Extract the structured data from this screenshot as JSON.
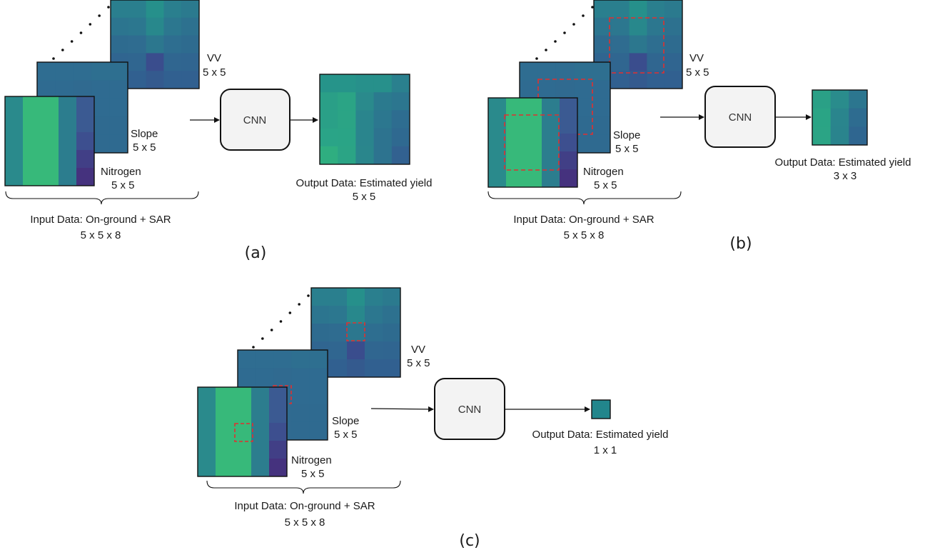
{
  "panels": [
    {
      "caption": "(a)",
      "layers": [
        {
          "name": "VV",
          "size": "5 x 5"
        },
        {
          "name": "Slope",
          "size": "5 x 5"
        },
        {
          "name": "Nitrogen",
          "size": "5 x 5"
        }
      ],
      "input_label": "Input Data: On-ground + SAR",
      "input_size": "5 x 5 x 8",
      "model_label": "CNN",
      "output_label": "Output Data: Estimated yield",
      "output_size": "5 x 5",
      "window": "none"
    },
    {
      "caption": "(b)",
      "layers": [
        {
          "name": "VV",
          "size": "5 x 5"
        },
        {
          "name": "Slope",
          "size": "5 x 5"
        },
        {
          "name": "Nitrogen",
          "size": "5 x 5"
        }
      ],
      "input_label": "Input Data: On-ground + SAR",
      "input_size": "5 x 5 x 8",
      "model_label": "CNN",
      "output_label": "Output Data: Estimated yield",
      "output_size": "3 x 3",
      "window": "3 x 3"
    },
    {
      "caption": "(c)",
      "layers": [
        {
          "name": "VV",
          "size": "5 x 5"
        },
        {
          "name": "Slope",
          "size": "5 x 5"
        },
        {
          "name": "Nitrogen",
          "size": "5 x 5"
        }
      ],
      "input_label": "Input Data: On-ground + SAR",
      "input_size": "5 x 5 x 8",
      "model_label": "CNN",
      "output_label": "Output Data: Estimated yield",
      "output_size": "1 x 1",
      "window": "1 x 1"
    }
  ],
  "colors": {
    "window_dash": "#e03030",
    "cnn_fill": "#f3f3f3",
    "nitrogen": [
      [
        "#2a8a8c",
        "#37b97a",
        "#37b97a",
        "#2c7d8e",
        "#3b5a92"
      ],
      [
        "#2a8a8c",
        "#37b97a",
        "#37b97a",
        "#2c7d8e",
        "#3b5a92"
      ],
      [
        "#2a8a8c",
        "#37b97a",
        "#37b97a",
        "#2c7d8e",
        "#3d4f8f"
      ],
      [
        "#2a8a8c",
        "#37b97a",
        "#37b97a",
        "#2c7d8e",
        "#413f86"
      ],
      [
        "#2a8a8c",
        "#37b97a",
        "#37b97a",
        "#2c7d8e",
        "#45327e"
      ]
    ],
    "slope": [
      [
        "#2f6d91",
        "#2f6d91",
        "#2f6d91",
        "#2e6f90",
        "#2e6f90"
      ],
      [
        "#2f6b91",
        "#2f6b91",
        "#306a90",
        "#2f6b91",
        "#2f6b91"
      ],
      [
        "#2f6b91",
        "#2f6b91",
        "#306a90",
        "#2f6b91",
        "#2f6b91"
      ],
      [
        "#2f6a90",
        "#2f6a90",
        "#306a90",
        "#2f6a90",
        "#2f6a90"
      ],
      [
        "#2f6a90",
        "#2f6a90",
        "#306a90",
        "#2f6a90",
        "#2f6a90"
      ]
    ],
    "vv": [
      [
        "#2a7f8e",
        "#2a7f8e",
        "#26908b",
        "#2a7f8e",
        "#2b7a8e"
      ],
      [
        "#2c758f",
        "#2c778f",
        "#28888c",
        "#2c778f",
        "#2d718f"
      ],
      [
        "#2e6b8f",
        "#2f6c90",
        "#2c778e",
        "#2e6e90",
        "#2e6b8f"
      ],
      [
        "#306590",
        "#306690",
        "#3a4d8d",
        "#306690",
        "#306590"
      ],
      [
        "#316090",
        "#316090",
        "#345a8e",
        "#316090",
        "#316090"
      ]
    ],
    "output_5": [
      [
        "#26948a",
        "#26948a",
        "#27908b",
        "#27908b",
        "#2a808e"
      ],
      [
        "#2a9f87",
        "#2ba485",
        "#2a8a8c",
        "#2b7a8e",
        "#2c768f"
      ],
      [
        "#2aa087",
        "#2ba485",
        "#2a858d",
        "#2c778f",
        "#2e6d90"
      ],
      [
        "#2aa487",
        "#2aa486",
        "#2a858d",
        "#2d738f",
        "#2f6990"
      ],
      [
        "#2fae80",
        "#2ba485",
        "#2a868c",
        "#2d738f",
        "#326190"
      ]
    ],
    "output_3": [
      [
        "#2aa086",
        "#2a8c8c",
        "#2c768f"
      ],
      [
        "#2aa485",
        "#2a858d",
        "#2e6c90"
      ],
      [
        "#2ba485",
        "#2a848d",
        "#2f6690"
      ]
    ],
    "output_1": [
      [
        "#22868c"
      ]
    ]
  }
}
